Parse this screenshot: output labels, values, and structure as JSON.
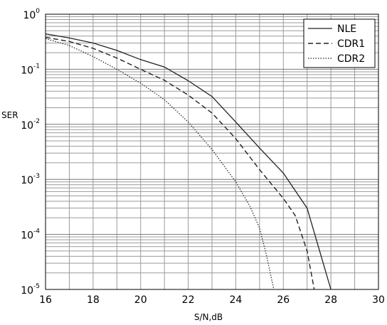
{
  "chart_data": {
    "type": "line",
    "xlabel": "S/N,dB",
    "ylabel": "SER",
    "xlim": [
      16,
      30
    ],
    "ylim_exp": [
      -5,
      0
    ],
    "yscale": "log",
    "grid": true,
    "legend_position": "top-right",
    "x_ticks": [
      "16",
      "18",
      "20",
      "22",
      "24",
      "26",
      "28",
      "30"
    ],
    "y_ticks": [
      {
        "base": "10",
        "exp": "0"
      },
      {
        "base": "10",
        "exp": "-1"
      },
      {
        "base": "10",
        "exp": "-2"
      },
      {
        "base": "10",
        "exp": "-3"
      },
      {
        "base": "10",
        "exp": "-4"
      },
      {
        "base": "10",
        "exp": "-5"
      }
    ],
    "series": [
      {
        "name": "NLE",
        "style": "solid",
        "x": [
          16,
          17,
          18,
          19,
          20,
          21,
          22,
          23,
          24,
          25,
          26,
          27,
          28
        ],
        "y": [
          0.44,
          0.37,
          0.3,
          0.22,
          0.15,
          0.11,
          0.062,
          0.032,
          0.011,
          0.0037,
          0.0013,
          0.0003,
          1e-05
        ]
      },
      {
        "name": "CDR1",
        "style": "dashed",
        "x": [
          16,
          17,
          18,
          19,
          20,
          21,
          22,
          23,
          24,
          25,
          26,
          26.5,
          27,
          27.3
        ],
        "y": [
          0.38,
          0.32,
          0.24,
          0.16,
          0.1,
          0.063,
          0.034,
          0.016,
          0.0055,
          0.0015,
          0.00045,
          0.00022,
          5e-05,
          1e-05
        ]
      },
      {
        "name": "CDR2",
        "style": "dotted",
        "x": [
          16,
          17,
          18,
          19,
          20,
          21,
          22,
          23,
          24,
          24.6,
          25,
          25.3,
          25.6
        ],
        "y": [
          0.36,
          0.27,
          0.17,
          0.1,
          0.056,
          0.028,
          0.011,
          0.0035,
          0.0009,
          0.00032,
          0.00013,
          4e-05,
          1e-05
        ]
      }
    ]
  }
}
